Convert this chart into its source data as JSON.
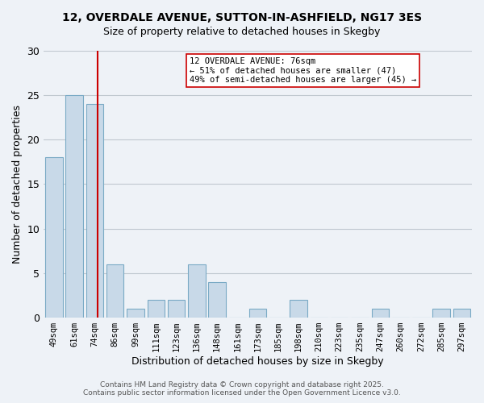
{
  "title_line1": "12, OVERDALE AVENUE, SUTTON-IN-ASHFIELD, NG17 3ES",
  "title_line2": "Size of property relative to detached houses in Skegby",
  "xlabel": "Distribution of detached houses by size in Skegby",
  "ylabel": "Number of detached properties",
  "bin_labels": [
    "49sqm",
    "61sqm",
    "74sqm",
    "86sqm",
    "99sqm",
    "111sqm",
    "123sqm",
    "136sqm",
    "148sqm",
    "161sqm",
    "173sqm",
    "185sqm",
    "198sqm",
    "210sqm",
    "223sqm",
    "235sqm",
    "247sqm",
    "260sqm",
    "272sqm",
    "285sqm",
    "297sqm"
  ],
  "bar_values": [
    18,
    25,
    24,
    6,
    1,
    2,
    2,
    6,
    4,
    0,
    1,
    0,
    2,
    0,
    0,
    0,
    1,
    0,
    0,
    1,
    1
  ],
  "bar_color": "#c8d9e8",
  "bar_edge_color": "#7aaac5",
  "grid_color": "#c0c8d0",
  "background_color": "#eef2f7",
  "annotation_line1": "12 OVERDALE AVENUE: 76sqm",
  "annotation_line2": "← 51% of detached houses are smaller (47)",
  "annotation_line3": "49% of semi-detached houses are larger (45) →",
  "vline_x": 2.15,
  "vline_color": "#cc0000",
  "ylim": [
    0,
    30
  ],
  "yticks": [
    0,
    5,
    10,
    15,
    20,
    25,
    30
  ],
  "footer_line1": "Contains HM Land Registry data © Crown copyright and database right 2025.",
  "footer_line2": "Contains public sector information licensed under the Open Government Licence v3.0."
}
